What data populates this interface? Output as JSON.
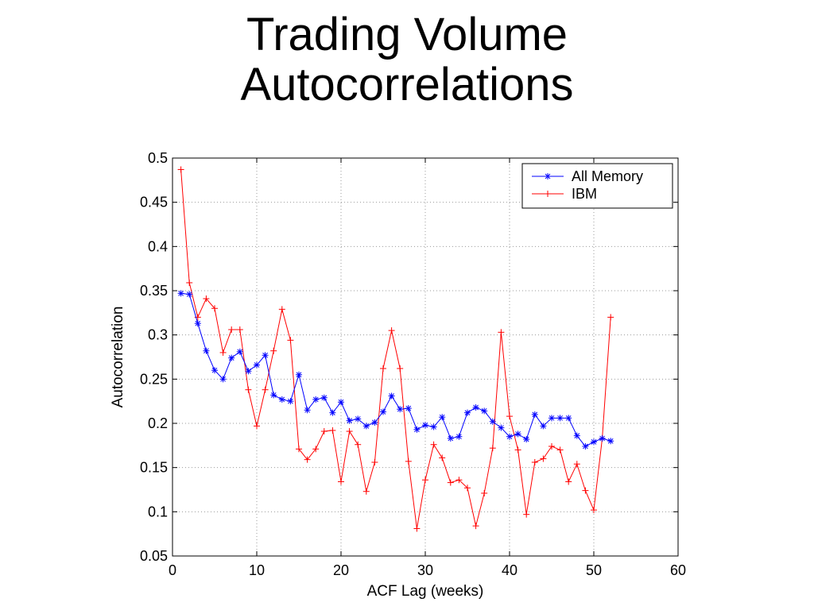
{
  "slide": {
    "title_line1": "Trading Volume",
    "title_line2": "Autocorrelations"
  },
  "chart_data": {
    "type": "line",
    "xlabel": "ACF Lag (weeks)",
    "ylabel": "Autocorrelation",
    "xlim": [
      0,
      60
    ],
    "ylim": [
      0.05,
      0.5
    ],
    "xticks": [
      0,
      10,
      20,
      30,
      40,
      50,
      60
    ],
    "xtick_labels": [
      "0",
      "10",
      "20",
      "30",
      "40",
      "50",
      "60"
    ],
    "yticks": [
      0.05,
      0.1,
      0.15,
      0.2,
      0.25,
      0.3,
      0.35,
      0.4,
      0.45,
      0.5
    ],
    "ytick_labels": [
      "0.05",
      "0.1",
      "0.15",
      "0.2",
      "0.25",
      "0.3",
      "0.35",
      "0.4",
      "0.45",
      "0.5"
    ],
    "grid": true,
    "legend_position": "top-right",
    "x": [
      1,
      2,
      3,
      4,
      5,
      6,
      7,
      8,
      9,
      10,
      11,
      12,
      13,
      14,
      15,
      16,
      17,
      18,
      19,
      20,
      21,
      22,
      23,
      24,
      25,
      26,
      27,
      28,
      29,
      30,
      31,
      32,
      33,
      34,
      35,
      36,
      37,
      38,
      39,
      40,
      41,
      42,
      43,
      44,
      45,
      46,
      47,
      48,
      49,
      50,
      51,
      52
    ],
    "series": [
      {
        "name": "All Memory",
        "color": "#0000ff",
        "marker": "asterisk",
        "values": [
          0.347,
          0.346,
          0.313,
          0.282,
          0.26,
          0.25,
          0.274,
          0.281,
          0.259,
          0.266,
          0.277,
          0.232,
          0.227,
          0.225,
          0.255,
          0.215,
          0.227,
          0.229,
          0.212,
          0.224,
          0.203,
          0.205,
          0.197,
          0.201,
          0.213,
          0.231,
          0.216,
          0.217,
          0.193,
          0.198,
          0.196,
          0.207,
          0.183,
          0.185,
          0.212,
          0.218,
          0.214,
          0.202,
          0.195,
          0.185,
          0.188,
          0.182,
          0.21,
          0.197,
          0.206,
          0.206,
          0.206,
          0.186,
          0.174,
          0.179,
          0.183,
          0.18
        ]
      },
      {
        "name": "IBM",
        "color": "#ff0000",
        "marker": "plus",
        "values": [
          0.487,
          0.359,
          0.32,
          0.341,
          0.33,
          0.28,
          0.306,
          0.306,
          0.238,
          0.197,
          0.238,
          0.282,
          0.329,
          0.294,
          0.171,
          0.159,
          0.171,
          0.191,
          0.192,
          0.134,
          0.191,
          0.176,
          0.123,
          0.156,
          0.262,
          0.305,
          0.262,
          0.157,
          0.081,
          0.136,
          0.176,
          0.161,
          0.133,
          0.136,
          0.127,
          0.084,
          0.121,
          0.172,
          0.303,
          0.208,
          0.17,
          0.097,
          0.156,
          0.16,
          0.174,
          0.17,
          0.134,
          0.154,
          0.124,
          0.102,
          0.183,
          0.32
        ]
      }
    ]
  }
}
